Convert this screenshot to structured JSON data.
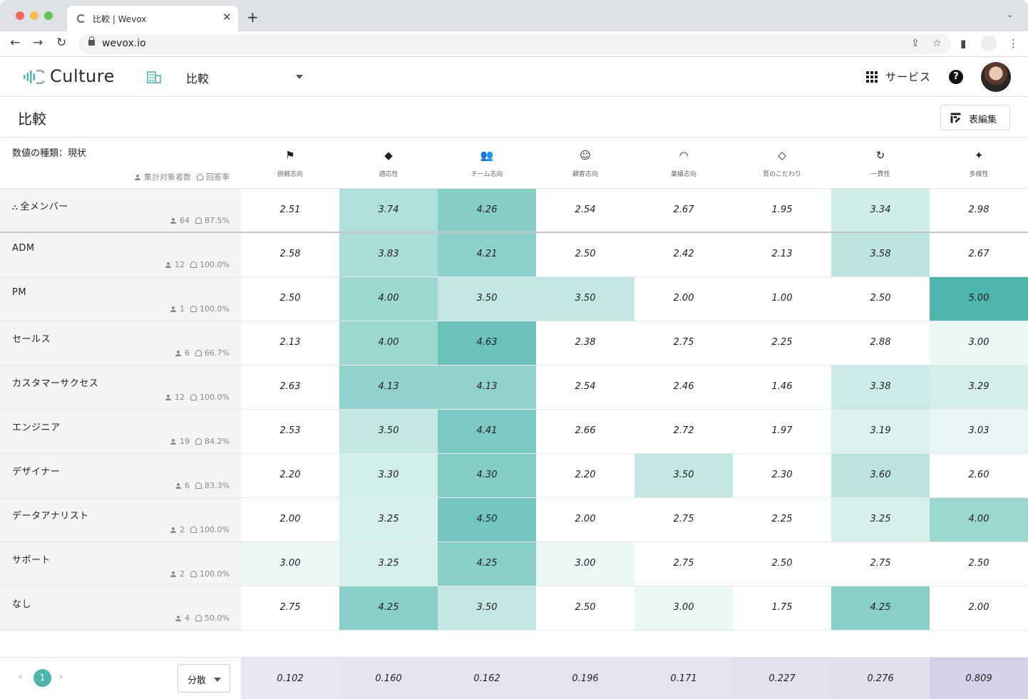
{
  "browser": {
    "tab_title": "比較 | Wevox",
    "url": "wevox.io",
    "new_tab": "+",
    "tab_close": "✕"
  },
  "header": {
    "app_name": "Culture",
    "page_select": "比較",
    "service_label": "サービス",
    "help": "?",
    "accent_color": "#4db6ac"
  },
  "title_row": {
    "title": "比較",
    "edit_button": "表編集"
  },
  "table": {
    "value_type": "数値の種類：現状",
    "legend_count": "集計対象者数",
    "legend_rate": "回答率",
    "columns": [
      {
        "label": "挑戦志向",
        "icon": "flag-icon",
        "glyph": "⚑"
      },
      {
        "label": "適応性",
        "icon": "shapes-icon",
        "glyph": "◆"
      },
      {
        "label": "チーム志向",
        "icon": "team-icon",
        "glyph": "👥"
      },
      {
        "label": "顧客志向",
        "icon": "smiley-icon",
        "glyph": "☺"
      },
      {
        "label": "業績志向",
        "icon": "gauge-icon",
        "glyph": "◠"
      },
      {
        "label": "質のこだわり",
        "icon": "diamond-icon",
        "glyph": "◇"
      },
      {
        "label": "一貫性",
        "icon": "refresh-icon",
        "glyph": "↻"
      },
      {
        "label": "多様性",
        "icon": "diversity-icon",
        "glyph": "✦"
      }
    ],
    "rows": [
      {
        "name": "全メンバー",
        "count": "64",
        "rate": "87.5%",
        "total": true,
        "values": [
          "2.51",
          "3.74",
          "4.26",
          "2.54",
          "2.67",
          "1.95",
          "3.34",
          "2.98"
        ]
      },
      {
        "name": "ADM",
        "count": "12",
        "rate": "100.0%",
        "values": [
          "2.58",
          "3.83",
          "4.21",
          "2.50",
          "2.42",
          "2.13",
          "3.58",
          "2.67"
        ]
      },
      {
        "name": "PM",
        "count": "1",
        "rate": "100.0%",
        "values": [
          "2.50",
          "4.00",
          "3.50",
          "3.50",
          "2.00",
          "1.00",
          "2.50",
          "5.00"
        ]
      },
      {
        "name": "セールス",
        "count": "6",
        "rate": "66.7%",
        "values": [
          "2.13",
          "4.00",
          "4.63",
          "2.38",
          "2.75",
          "2.25",
          "2.88",
          "3.00"
        ]
      },
      {
        "name": "カスタマーサクセス",
        "count": "12",
        "rate": "100.0%",
        "values": [
          "2.63",
          "4.13",
          "4.13",
          "2.54",
          "2.46",
          "1.46",
          "3.38",
          "3.29"
        ]
      },
      {
        "name": "エンジニア",
        "count": "19",
        "rate": "84.2%",
        "values": [
          "2.53",
          "3.50",
          "4.41",
          "2.66",
          "2.72",
          "1.97",
          "3.19",
          "3.03"
        ]
      },
      {
        "name": "デザイナー",
        "count": "6",
        "rate": "83.3%",
        "values": [
          "2.20",
          "3.30",
          "4.30",
          "2.20",
          "3.50",
          "2.30",
          "3.60",
          "2.60"
        ]
      },
      {
        "name": "データアナリスト",
        "count": "2",
        "rate": "100.0%",
        "values": [
          "2.00",
          "3.25",
          "4.50",
          "2.00",
          "2.75",
          "2.25",
          "3.25",
          "4.00"
        ]
      },
      {
        "name": "サポート",
        "count": "2",
        "rate": "100.0%",
        "values": [
          "3.00",
          "3.25",
          "4.25",
          "3.00",
          "2.75",
          "2.50",
          "2.75",
          "2.50"
        ]
      },
      {
        "name": "なし",
        "count": "4",
        "rate": "50.0%",
        "values": [
          "2.75",
          "4.25",
          "3.50",
          "2.50",
          "3.00",
          "1.75",
          "4.25",
          "2.00"
        ]
      }
    ]
  },
  "footer": {
    "page_prev": "‹",
    "page_current": "1",
    "page_next": "›",
    "stat_select": "分散",
    "variances": [
      "0.102",
      "0.160",
      "0.162",
      "0.196",
      "0.171",
      "0.227",
      "0.276",
      "0.809"
    ]
  }
}
